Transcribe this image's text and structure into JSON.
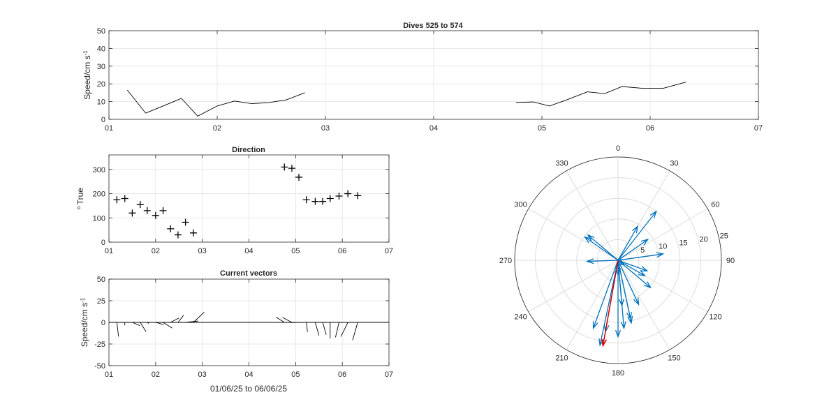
{
  "chart_data": [
    {
      "id": "speed",
      "type": "line",
      "title": "Dives 525 to 574",
      "ylabel": "Speed/cm s",
      "ylabel_sup": "-1",
      "xlim": [
        1,
        7
      ],
      "ylim": [
        0,
        50
      ],
      "xticks": [
        1,
        2,
        3,
        4,
        5,
        6,
        7
      ],
      "xticklabels": [
        "01",
        "02",
        "03",
        "04",
        "05",
        "06",
        "07"
      ],
      "yticks": [
        0,
        10,
        20,
        30,
        40,
        50
      ],
      "grid": true,
      "series": [
        {
          "color": "#000000",
          "segments": [
            {
              "x": [
                1.17,
                1.34,
                1.5,
                1.67,
                1.82,
                2.0,
                2.16,
                2.32,
                2.48,
                2.64,
                2.81
              ],
              "y": [
                16.5,
                3.5,
                7.5,
                11.8,
                1.8,
                7.5,
                10.3,
                8.8,
                9.5,
                11.0,
                15.0
              ]
            },
            {
              "x": [
                4.76,
                4.92,
                5.07,
                5.23,
                5.42,
                5.58,
                5.74,
                5.93,
                6.12,
                6.33
              ],
              "y": [
                9.5,
                9.8,
                7.5,
                11.0,
                15.5,
                14.5,
                18.5,
                17.5,
                17.5,
                21.0
              ]
            }
          ]
        }
      ]
    },
    {
      "id": "direction",
      "type": "scatter",
      "title": "Direction",
      "ylabel": "True",
      "ylabel_sup": "o",
      "xlim": [
        1,
        7
      ],
      "ylim": [
        0,
        360
      ],
      "xticks": [
        1,
        2,
        3,
        4,
        5,
        6,
        7
      ],
      "xticklabels": [
        "01",
        "02",
        "03",
        "04",
        "05",
        "06",
        "07"
      ],
      "yticks": [
        0,
        100,
        200,
        300
      ],
      "grid": true,
      "marker": "+",
      "x": [
        1.17,
        1.34,
        1.5,
        1.67,
        1.82,
        2.0,
        2.16,
        2.32,
        2.48,
        2.64,
        2.81,
        4.76,
        4.92,
        5.07,
        5.23,
        5.42,
        5.58,
        5.74,
        5.93,
        6.12,
        6.33
      ],
      "y": [
        175,
        180,
        120,
        155,
        130,
        110,
        130,
        55,
        30,
        82,
        38,
        310,
        305,
        268,
        175,
        168,
        168,
        180,
        190,
        200,
        192
      ]
    },
    {
      "id": "vectors",
      "type": "line",
      "title": "Current vectors",
      "ylabel": "Speed/cm s",
      "ylabel_sup": "-1",
      "xlabel": "01/06/25 to 06/06/25",
      "xlim": [
        1,
        7
      ],
      "ylim": [
        -50,
        50
      ],
      "xticks": [
        1,
        2,
        3,
        4,
        5,
        6,
        7
      ],
      "xticklabels": [
        "01",
        "02",
        "03",
        "04",
        "05",
        "06",
        "07"
      ],
      "yticks": [
        -50,
        -25,
        0,
        25,
        50
      ],
      "grid": true,
      "color": "#000000"
    },
    {
      "id": "polar",
      "type": "polar",
      "theta_direction": "clockwise",
      "theta_zero": "top",
      "theta_labels": [
        "0",
        "30",
        "60",
        "90",
        "120",
        "150",
        "180",
        "210",
        "240",
        "270",
        "300",
        "330"
      ],
      "r_max": 25,
      "r_ticks": [
        5,
        10,
        15,
        20,
        25
      ],
      "r_ticklabels": [
        "5",
        "10",
        "15",
        "20",
        "25"
      ],
      "arrow_color": "#0072bd",
      "mean_color": "#d90000",
      "mean_vector": {
        "direction": 190,
        "speed": 21
      }
    }
  ]
}
